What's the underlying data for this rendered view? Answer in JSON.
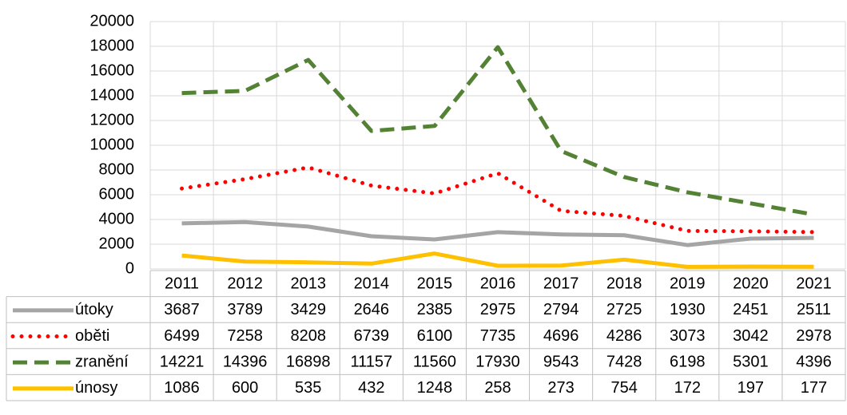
{
  "chart_data": {
    "type": "line",
    "categories": [
      "2011",
      "2012",
      "2013",
      "2014",
      "2015",
      "2016",
      "2017",
      "2018",
      "2019",
      "2020",
      "2021"
    ],
    "series": [
      {
        "name": "útoky",
        "color": "#a5a5a5",
        "style": "solid",
        "values": [
          3687,
          3789,
          3429,
          2646,
          2385,
          2975,
          2794,
          2725,
          1930,
          2451,
          2511
        ]
      },
      {
        "name": "oběti",
        "color": "#ff0000",
        "style": "dotted",
        "values": [
          6499,
          7258,
          8208,
          6739,
          6100,
          7735,
          4696,
          4286,
          3073,
          3042,
          2978
        ]
      },
      {
        "name": "zranění",
        "color": "#548235",
        "style": "dashed",
        "values": [
          14221,
          14396,
          16898,
          11157,
          11560,
          17930,
          9543,
          7428,
          6198,
          5301,
          4396
        ]
      },
      {
        "name": "únosy",
        "color": "#ffc000",
        "style": "solid",
        "values": [
          1086,
          600,
          535,
          432,
          1248,
          258,
          273,
          754,
          172,
          197,
          177
        ]
      }
    ],
    "ylim": [
      0,
      20000
    ],
    "yticks": [
      0,
      2000,
      4000,
      6000,
      8000,
      10000,
      12000,
      14000,
      16000,
      18000,
      20000
    ],
    "grid": true
  }
}
